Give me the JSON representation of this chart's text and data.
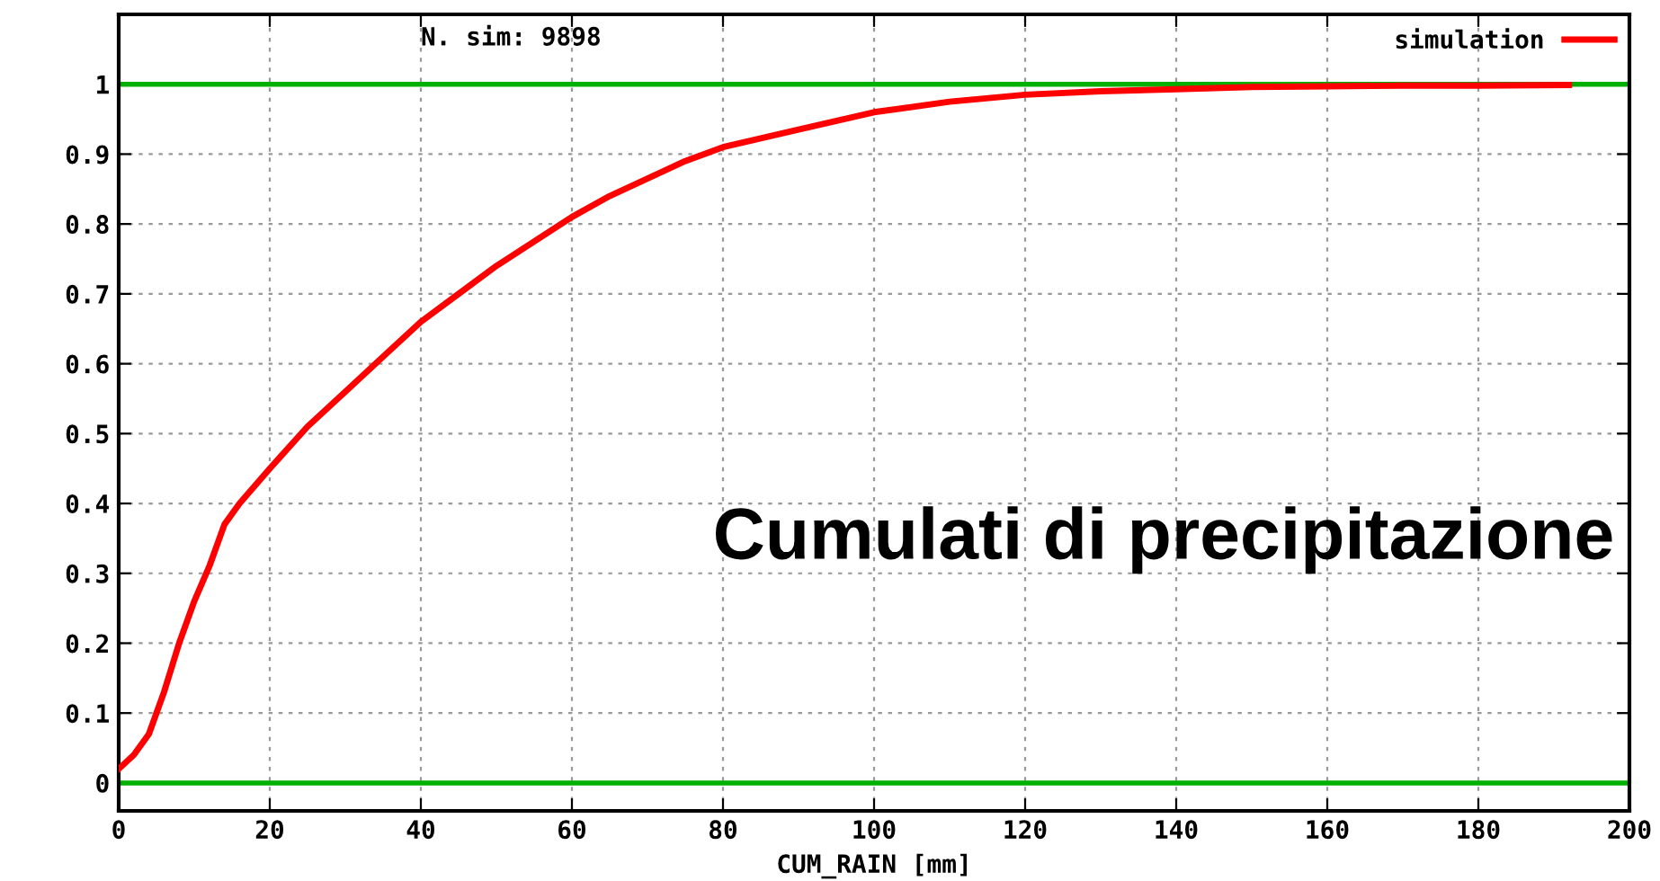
{
  "chart_data": {
    "type": "line",
    "xlabel": "CUM_RAIN [mm]",
    "xlim": [
      0,
      200
    ],
    "xticks": [
      0,
      20,
      40,
      60,
      80,
      100,
      120,
      140,
      160,
      180,
      200
    ],
    "ylim": [
      -0.04,
      1.1
    ],
    "yticks": [
      0,
      0.1,
      0.2,
      0.3,
      0.4,
      0.5,
      0.6,
      0.7,
      0.8,
      0.9,
      1
    ],
    "grid": true,
    "legend": "top right",
    "annotations": [
      "N. sim: 9898",
      "Cumulati di precipitazione"
    ],
    "series": [
      {
        "color": "#00b000",
        "x": [
          0,
          200
        ],
        "values": [
          0,
          0
        ]
      },
      {
        "color": "#00b000",
        "x": [
          0,
          200
        ],
        "values": [
          1,
          1
        ]
      },
      {
        "name": "simulation",
        "color": "#ff0000",
        "x": [
          0,
          2,
          4,
          6,
          8,
          10,
          12,
          14,
          16,
          20,
          25,
          30,
          35,
          40,
          45,
          50,
          55,
          60,
          65,
          70,
          75,
          80,
          90,
          100,
          110,
          120,
          130,
          140,
          150,
          160,
          170,
          180,
          192
        ],
        "values": [
          0.02,
          0.04,
          0.07,
          0.13,
          0.2,
          0.26,
          0.31,
          0.37,
          0.4,
          0.45,
          0.51,
          0.56,
          0.61,
          0.66,
          0.7,
          0.74,
          0.775,
          0.81,
          0.84,
          0.865,
          0.89,
          0.91,
          0.935,
          0.96,
          0.975,
          0.985,
          0.99,
          0.993,
          0.996,
          0.997,
          0.998,
          0.998,
          0.999
        ]
      }
    ]
  }
}
